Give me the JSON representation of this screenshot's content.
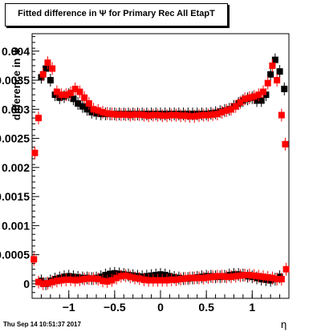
{
  "title": "Fitted difference in Ψ  for Primary Rec All EtapT",
  "footer": "Thu Sep 14 10:51:37 2017",
  "chart_data": {
    "type": "scatter",
    "title": "Fitted difference in Ψ  for Primary Rec All EtapT",
    "xlabel": "η",
    "ylabel": "difference in Ψ",
    "xlim": [
      -1.4,
      1.4
    ],
    "ylim": [
      -0.00025,
      0.0043
    ],
    "xticks": [
      -1,
      -0.5,
      0,
      0.5,
      1
    ],
    "xtick_labels": [
      "−1",
      "−0.5",
      "0",
      "0.5",
      "1"
    ],
    "yticks": [
      0,
      0.0005,
      0.001,
      0.0015,
      0.002,
      0.0025,
      0.003,
      0.0035,
      0.004
    ],
    "ytick_labels": [
      "0",
      "0.0005",
      "0.001",
      "0.0015",
      "0.002",
      "0.0025",
      "0.003",
      "0.0035",
      "0.004"
    ],
    "series": [
      {
        "color": "#000000",
        "x": [
          -1.3,
          -1.25,
          -1.2,
          -1.15,
          -1.1,
          -1.05,
          -1.0,
          -0.95,
          -0.9,
          -0.85,
          -0.8,
          -0.75,
          -0.7,
          -0.65,
          -0.6,
          -0.55,
          -0.5,
          -0.45,
          -0.4,
          -0.35,
          -0.3,
          -0.25,
          -0.2,
          -0.15,
          -0.1,
          -0.05,
          0.0,
          0.05,
          0.1,
          0.15,
          0.2,
          0.25,
          0.3,
          0.35,
          0.4,
          0.45,
          0.5,
          0.55,
          0.6,
          0.65,
          0.7,
          0.75,
          0.8,
          0.85,
          0.9,
          0.95,
          1.0,
          1.05,
          1.1,
          1.15,
          1.2,
          1.25,
          1.3,
          1.35
        ],
        "y": [
          0.00355,
          0.0037,
          0.0035,
          0.00325,
          0.0032,
          0.00322,
          0.00325,
          0.00318,
          0.0031,
          0.00305,
          0.003,
          0.00295,
          0.00293,
          0.00292,
          0.00292,
          0.00292,
          0.00292,
          0.00292,
          0.00292,
          0.00292,
          0.00292,
          0.00292,
          0.00292,
          0.00292,
          0.00292,
          0.00292,
          0.00292,
          0.00292,
          0.00292,
          0.00292,
          0.00292,
          0.00292,
          0.00292,
          0.00292,
          0.00292,
          0.00292,
          0.00292,
          0.00293,
          0.00294,
          0.00296,
          0.00298,
          0.003,
          0.00305,
          0.0031,
          0.00315,
          0.00318,
          0.0032,
          0.00315,
          0.00315,
          0.00325,
          0.0036,
          0.00385,
          0.00365,
          0.00335
        ]
      },
      {
        "color": "#ff0000",
        "x": [
          -1.37,
          -1.33,
          -1.28,
          -1.23,
          -1.18,
          -1.13,
          -1.08,
          -1.03,
          -0.98,
          -0.93,
          -0.88,
          -0.83,
          -0.78,
          -0.73,
          -0.68,
          -0.63,
          -0.58,
          -0.53,
          -0.48,
          -0.43,
          -0.38,
          -0.33,
          -0.28,
          -0.23,
          -0.18,
          -0.13,
          -0.08,
          -0.03,
          0.02,
          0.07,
          0.12,
          0.17,
          0.22,
          0.27,
          0.32,
          0.37,
          0.42,
          0.47,
          0.52,
          0.57,
          0.62,
          0.67,
          0.72,
          0.77,
          0.82,
          0.87,
          0.92,
          0.97,
          1.02,
          1.07,
          1.12,
          1.17,
          1.22,
          1.27,
          1.32,
          1.36
        ],
        "y": [
          0.00225,
          0.00285,
          0.0036,
          0.0038,
          0.0037,
          0.0033,
          0.00325,
          0.00325,
          0.00328,
          0.00335,
          0.0033,
          0.0032,
          0.0031,
          0.003,
          0.00298,
          0.00295,
          0.00293,
          0.00292,
          0.00291,
          0.00291,
          0.00291,
          0.0029,
          0.00291,
          0.00291,
          0.0029,
          0.00289,
          0.0029,
          0.0029,
          0.00289,
          0.00289,
          0.0029,
          0.0029,
          0.00289,
          0.00289,
          0.00288,
          0.00288,
          0.00289,
          0.0029,
          0.0029,
          0.00291,
          0.00292,
          0.00295,
          0.00298,
          0.003,
          0.00305,
          0.00312,
          0.00318,
          0.0032,
          0.00322,
          0.00325,
          0.0033,
          0.00345,
          0.00375,
          0.0035,
          0.0029,
          0.0024
        ]
      },
      {
        "color": "#000000",
        "x": [
          -1.3,
          -1.25,
          -1.2,
          -1.15,
          -1.1,
          -1.05,
          -1.0,
          -0.95,
          -0.9,
          -0.85,
          -0.8,
          -0.75,
          -0.7,
          -0.65,
          -0.6,
          -0.55,
          -0.5,
          -0.45,
          -0.4,
          -0.35,
          -0.3,
          -0.25,
          -0.2,
          -0.15,
          -0.1,
          -0.05,
          0.0,
          0.05,
          0.1,
          0.15,
          0.2,
          0.25,
          0.3,
          0.35,
          0.4,
          0.45,
          0.5,
          0.55,
          0.6,
          0.65,
          0.7,
          0.75,
          0.8,
          0.85,
          0.9,
          0.95,
          1.0,
          1.05,
          1.1,
          1.15,
          1.2,
          1.25,
          1.3
        ],
        "y": [
          5e-05,
          0.0,
          5e-05,
          8e-05,
          0.0001,
          0.00012,
          0.00013,
          0.00012,
          0.00011,
          0.0001,
          0.0001,
          9e-05,
          0.0001,
          0.00012,
          0.00015,
          0.00017,
          0.00018,
          0.00017,
          0.00016,
          0.00015,
          0.00014,
          0.00013,
          0.00012,
          0.00013,
          0.00014,
          0.00015,
          0.00016,
          0.00015,
          0.00013,
          0.00011,
          0.0001,
          9e-05,
          9e-05,
          0.0001,
          0.00011,
          0.00012,
          0.00013,
          0.00013,
          0.00012,
          0.00012,
          0.00013,
          0.00015,
          0.00016,
          0.00016,
          0.00015,
          0.00013,
          0.00012,
          0.0001,
          8e-05,
          7e-05,
          6e-05,
          8e-05,
          0.00012
        ]
      },
      {
        "color": "#ff0000",
        "x": [
          -1.38,
          -1.33,
          -1.28,
          -1.23,
          -1.18,
          -1.13,
          -1.08,
          -1.03,
          -0.98,
          -0.93,
          -0.88,
          -0.83,
          -0.78,
          -0.73,
          -0.68,
          -0.63,
          -0.58,
          -0.53,
          -0.48,
          -0.43,
          -0.38,
          -0.33,
          -0.28,
          -0.23,
          -0.18,
          -0.13,
          -0.08,
          -0.03,
          0.02,
          0.07,
          0.12,
          0.17,
          0.22,
          0.27,
          0.32,
          0.37,
          0.42,
          0.47,
          0.52,
          0.57,
          0.62,
          0.67,
          0.72,
          0.77,
          0.82,
          0.87,
          0.92,
          0.97,
          1.02,
          1.07,
          1.12,
          1.17,
          1.22,
          1.27,
          1.32,
          1.37
        ],
        "y": [
          0.00042,
          3e-05,
          0.0,
          1e-05,
          3e-05,
          5e-05,
          6e-05,
          7e-05,
          7e-05,
          6e-05,
          7e-05,
          8e-05,
          9e-05,
          9e-05,
          8e-05,
          5e-05,
          4e-05,
          6e-05,
          0.0001,
          0.00013,
          0.00014,
          0.00012,
          0.0001,
          9e-05,
          7e-05,
          6e-05,
          6e-05,
          6e-05,
          6e-05,
          6e-05,
          7e-05,
          7e-05,
          8e-05,
          9e-05,
          0.0001,
          0.0001,
          0.0001,
          0.0001,
          0.00011,
          0.00012,
          0.00013,
          0.00013,
          0.00012,
          0.00012,
          0.00013,
          0.00014,
          0.00015,
          0.00015,
          0.00014,
          0.00013,
          0.00012,
          0.00011,
          0.0001,
          8e-05,
          8e-05,
          0.00025
        ]
      }
    ]
  }
}
